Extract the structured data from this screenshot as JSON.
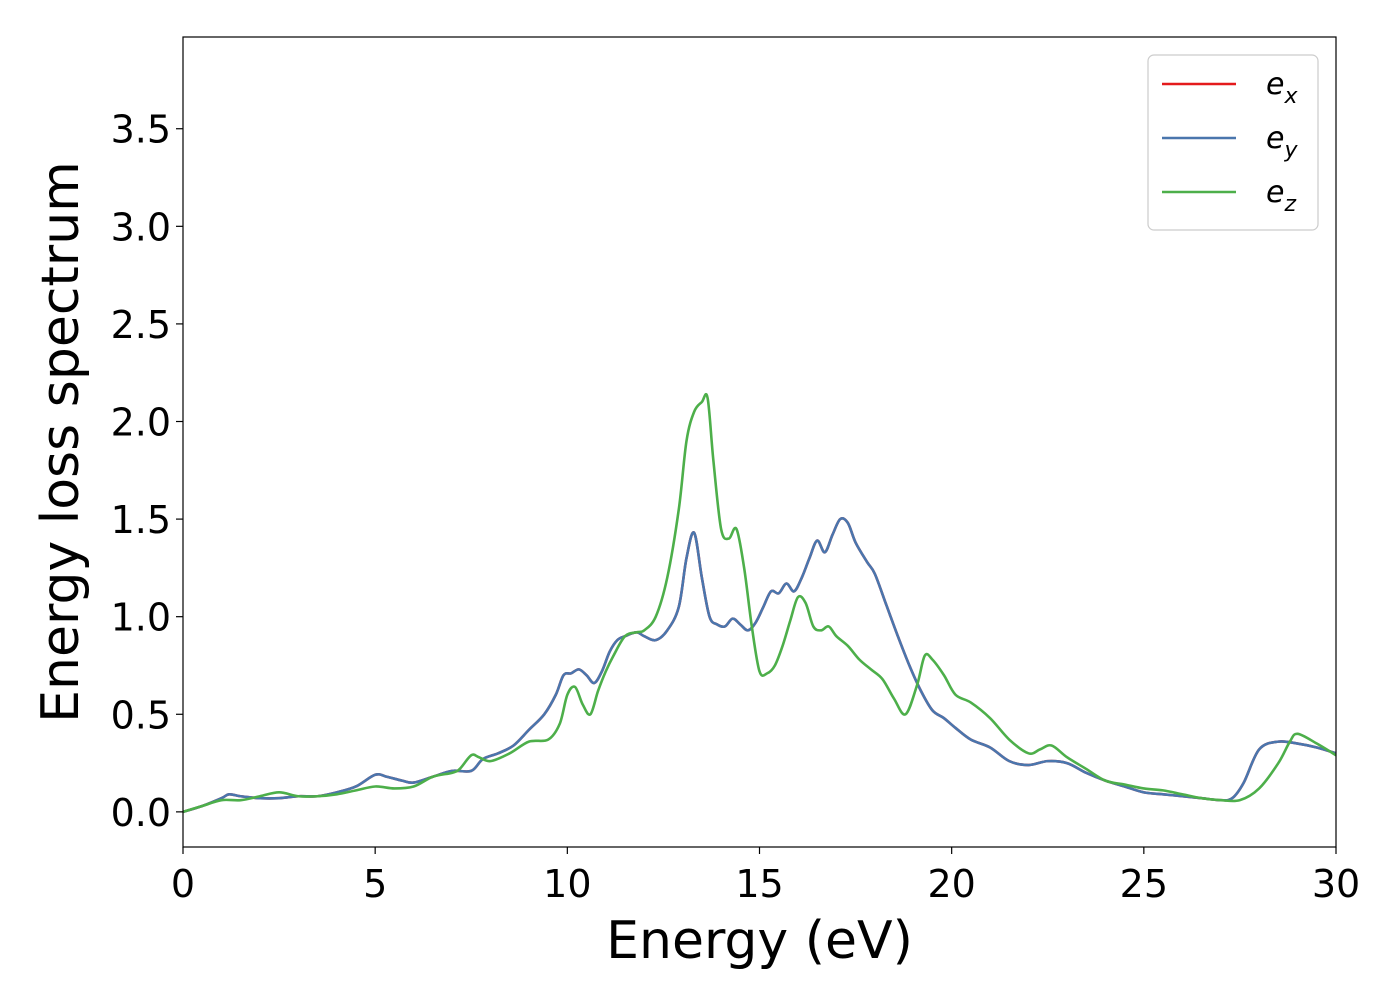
{
  "chart_data": {
    "type": "line",
    "xlabel": "Energy (eV)",
    "ylabel": "Energy loss spectrum",
    "xlim": [
      0,
      30
    ],
    "ylim": [
      -0.18,
      3.97
    ],
    "xticks": [
      0,
      5,
      10,
      15,
      20,
      25,
      30
    ],
    "xtick_labels": [
      "0",
      "5",
      "10",
      "15",
      "20",
      "25",
      "30"
    ],
    "yticks": [
      0.0,
      0.5,
      1.0,
      1.5,
      2.0,
      2.5,
      3.0,
      3.5
    ],
    "ytick_labels": [
      "0.0",
      "0.5",
      "1.0",
      "1.5",
      "2.0",
      "2.5",
      "3.0",
      "3.5"
    ],
    "grid": false,
    "legend_position": "top-right",
    "series": [
      {
        "name": "e_x",
        "label_base": "e",
        "label_sub": "x",
        "color": "#e41a1c",
        "x": [
          0,
          0.5,
          1.0,
          1.2,
          1.5,
          2.0,
          2.5,
          3.0,
          3.5,
          4.0,
          4.5,
          5.0,
          5.3,
          5.7,
          6.0,
          6.5,
          7.0,
          7.5,
          7.8,
          8.2,
          8.6,
          9.0,
          9.4,
          9.7,
          9.9,
          10.1,
          10.3,
          10.5,
          10.7,
          10.9,
          11.1,
          11.3,
          11.5,
          11.8,
          12.0,
          12.3,
          12.6,
          12.9,
          13.1,
          13.3,
          13.5,
          13.7,
          13.9,
          14.1,
          14.3,
          14.5,
          14.7,
          14.9,
          15.1,
          15.3,
          15.5,
          15.7,
          15.9,
          16.1,
          16.3,
          16.5,
          16.7,
          16.9,
          17.1,
          17.3,
          17.5,
          17.8,
          18.0,
          18.3,
          18.6,
          18.9,
          19.2,
          19.5,
          19.8,
          20.1,
          20.5,
          21.0,
          21.5,
          22.0,
          22.5,
          23.0,
          23.5,
          24.0,
          24.5,
          25.0,
          25.5,
          26.0,
          26.5,
          27.0,
          27.3,
          27.6,
          28.0,
          28.5,
          29.0,
          29.5,
          30.0
        ],
        "values": [
          0,
          0.03,
          0.07,
          0.09,
          0.08,
          0.07,
          0.07,
          0.08,
          0.08,
          0.1,
          0.13,
          0.19,
          0.18,
          0.16,
          0.15,
          0.18,
          0.21,
          0.21,
          0.27,
          0.3,
          0.34,
          0.42,
          0.5,
          0.6,
          0.7,
          0.71,
          0.73,
          0.7,
          0.66,
          0.72,
          0.82,
          0.88,
          0.9,
          0.92,
          0.9,
          0.88,
          0.93,
          1.05,
          1.3,
          1.43,
          1.2,
          1.0,
          0.96,
          0.95,
          0.99,
          0.96,
          0.93,
          0.97,
          1.05,
          1.13,
          1.12,
          1.17,
          1.13,
          1.2,
          1.3,
          1.39,
          1.33,
          1.42,
          1.5,
          1.48,
          1.38,
          1.28,
          1.22,
          1.06,
          0.9,
          0.75,
          0.62,
          0.52,
          0.48,
          0.43,
          0.37,
          0.33,
          0.26,
          0.24,
          0.26,
          0.25,
          0.2,
          0.16,
          0.13,
          0.1,
          0.09,
          0.08,
          0.07,
          0.06,
          0.07,
          0.15,
          0.32,
          0.36,
          0.35,
          0.33,
          0.3
        ]
      },
      {
        "name": "e_y",
        "label_base": "e",
        "label_sub": "y",
        "color": "#4a76ad",
        "x": [
          0,
          0.5,
          1.0,
          1.2,
          1.5,
          2.0,
          2.5,
          3.0,
          3.5,
          4.0,
          4.5,
          5.0,
          5.3,
          5.7,
          6.0,
          6.5,
          7.0,
          7.5,
          7.8,
          8.2,
          8.6,
          9.0,
          9.4,
          9.7,
          9.9,
          10.1,
          10.3,
          10.5,
          10.7,
          10.9,
          11.1,
          11.3,
          11.5,
          11.8,
          12.0,
          12.3,
          12.6,
          12.9,
          13.1,
          13.3,
          13.5,
          13.7,
          13.9,
          14.1,
          14.3,
          14.5,
          14.7,
          14.9,
          15.1,
          15.3,
          15.5,
          15.7,
          15.9,
          16.1,
          16.3,
          16.5,
          16.7,
          16.9,
          17.1,
          17.3,
          17.5,
          17.8,
          18.0,
          18.3,
          18.6,
          18.9,
          19.2,
          19.5,
          19.8,
          20.1,
          20.5,
          21.0,
          21.5,
          22.0,
          22.5,
          23.0,
          23.5,
          24.0,
          24.5,
          25.0,
          25.5,
          26.0,
          26.5,
          27.0,
          27.3,
          27.6,
          28.0,
          28.5,
          29.0,
          29.5,
          30.0
        ],
        "values": [
          0,
          0.03,
          0.07,
          0.09,
          0.08,
          0.07,
          0.07,
          0.08,
          0.08,
          0.1,
          0.13,
          0.19,
          0.18,
          0.16,
          0.15,
          0.18,
          0.21,
          0.21,
          0.27,
          0.3,
          0.34,
          0.42,
          0.5,
          0.6,
          0.7,
          0.71,
          0.73,
          0.7,
          0.66,
          0.72,
          0.82,
          0.88,
          0.9,
          0.92,
          0.9,
          0.88,
          0.93,
          1.05,
          1.3,
          1.43,
          1.2,
          1.0,
          0.96,
          0.95,
          0.99,
          0.96,
          0.93,
          0.97,
          1.05,
          1.13,
          1.12,
          1.17,
          1.13,
          1.2,
          1.3,
          1.39,
          1.33,
          1.42,
          1.5,
          1.48,
          1.38,
          1.28,
          1.22,
          1.06,
          0.9,
          0.75,
          0.62,
          0.52,
          0.48,
          0.43,
          0.37,
          0.33,
          0.26,
          0.24,
          0.26,
          0.25,
          0.2,
          0.16,
          0.13,
          0.1,
          0.09,
          0.08,
          0.07,
          0.06,
          0.07,
          0.15,
          0.32,
          0.36,
          0.35,
          0.33,
          0.3
        ]
      },
      {
        "name": "e_z",
        "label_base": "e",
        "label_sub": "z",
        "color": "#4daf4a",
        "x": [
          0,
          0.5,
          1.0,
          1.5,
          2.0,
          2.5,
          3.0,
          3.5,
          4.0,
          4.5,
          5.0,
          5.5,
          6.0,
          6.5,
          7.0,
          7.2,
          7.5,
          7.7,
          8.0,
          8.5,
          9.0,
          9.5,
          9.8,
          10.0,
          10.2,
          10.4,
          10.6,
          10.8,
          11.0,
          11.2,
          11.5,
          11.8,
          12.0,
          12.3,
          12.6,
          12.9,
          13.1,
          13.3,
          13.5,
          13.65,
          13.8,
          14.0,
          14.2,
          14.4,
          14.6,
          14.8,
          15.0,
          15.2,
          15.4,
          15.6,
          15.8,
          16.0,
          16.2,
          16.4,
          16.6,
          16.8,
          17.0,
          17.3,
          17.6,
          17.9,
          18.2,
          18.5,
          18.8,
          19.1,
          19.3,
          19.5,
          19.8,
          20.1,
          20.5,
          21.0,
          21.5,
          22.0,
          22.3,
          22.6,
          23.0,
          23.5,
          24.0,
          24.5,
          25.0,
          25.5,
          26.0,
          26.5,
          27.0,
          27.5,
          28.0,
          28.5,
          28.8,
          29.0,
          29.5,
          30.0
        ],
        "values": [
          0,
          0.03,
          0.06,
          0.06,
          0.08,
          0.1,
          0.08,
          0.08,
          0.09,
          0.11,
          0.13,
          0.12,
          0.13,
          0.18,
          0.2,
          0.22,
          0.29,
          0.28,
          0.26,
          0.3,
          0.36,
          0.37,
          0.45,
          0.6,
          0.64,
          0.55,
          0.5,
          0.62,
          0.72,
          0.8,
          0.9,
          0.92,
          0.93,
          1.0,
          1.2,
          1.55,
          1.9,
          2.05,
          2.1,
          2.12,
          1.8,
          1.45,
          1.4,
          1.45,
          1.25,
          0.95,
          0.72,
          0.71,
          0.75,
          0.85,
          0.98,
          1.1,
          1.07,
          0.95,
          0.93,
          0.95,
          0.9,
          0.85,
          0.78,
          0.73,
          0.68,
          0.58,
          0.5,
          0.65,
          0.8,
          0.78,
          0.7,
          0.6,
          0.56,
          0.48,
          0.37,
          0.3,
          0.32,
          0.34,
          0.28,
          0.22,
          0.16,
          0.14,
          0.12,
          0.11,
          0.09,
          0.07,
          0.06,
          0.06,
          0.12,
          0.25,
          0.36,
          0.4,
          0.35,
          0.29
        ]
      }
    ]
  }
}
